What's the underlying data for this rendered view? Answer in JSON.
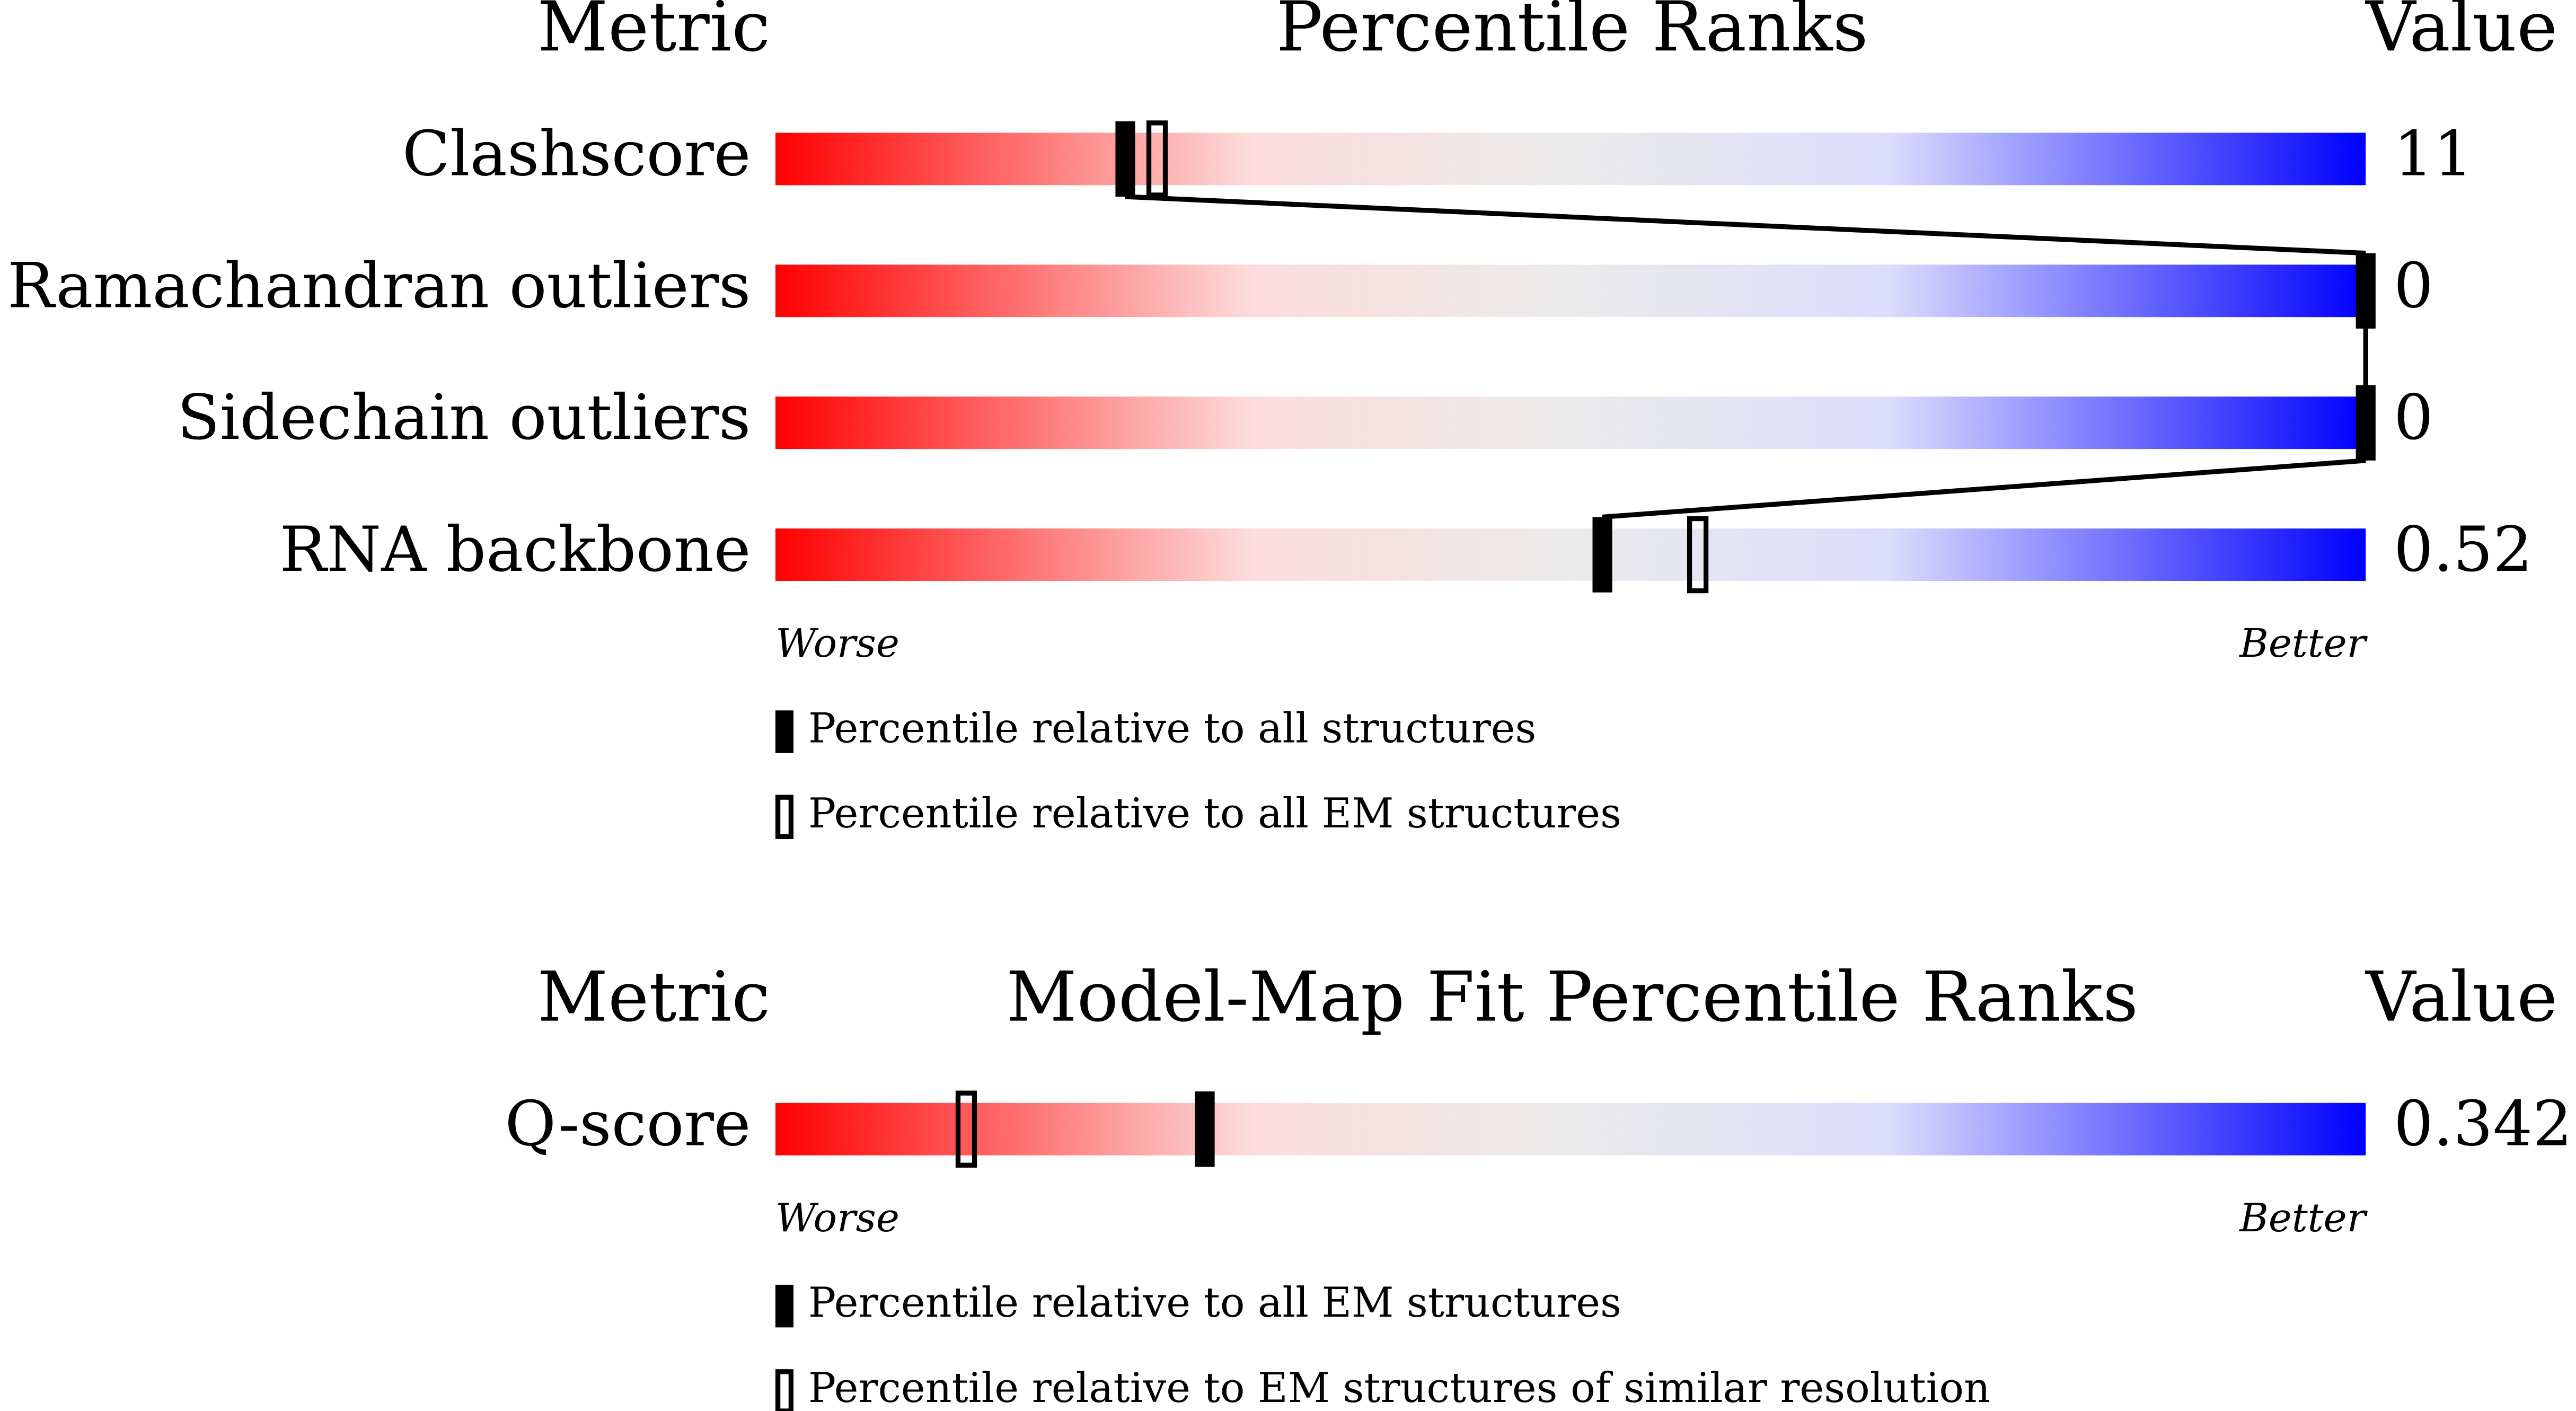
{
  "panels": [
    {
      "header": {
        "metric": "Metric",
        "title": "Percentile Ranks",
        "value": "Value"
      },
      "range": [
        0,
        100
      ],
      "rows": [
        {
          "metric": "Clashscore",
          "value": 11,
          "percentile_filled": 22,
          "percentile_open": 24
        },
        {
          "metric": "Ramachandran outliers",
          "value": 0,
          "percentile_filled": 100
        },
        {
          "metric": "Sidechain outliers",
          "value": 0,
          "percentile_filled": 100
        },
        {
          "metric": "RNA backbone",
          "value": 0.52,
          "percentile_filled": 52,
          "percentile_open": 58
        }
      ],
      "scale": {
        "worse": "Worse",
        "better": "Better"
      },
      "legend": {
        "filled": "Percentile relative to all structures",
        "open": "Percentile relative to all EM structures"
      }
    },
    {
      "header": {
        "metric": "Metric",
        "title": "Model-Map Fit Percentile Ranks",
        "value": "Value"
      },
      "range": [
        0,
        100
      ],
      "rows": [
        {
          "metric": "Q-score",
          "value": 0.342,
          "percentile_filled": 27,
          "percentile_open": 12
        }
      ],
      "scale": {
        "worse": "Worse",
        "better": "Better"
      },
      "legend": {
        "filled": "Percentile relative to all EM structures",
        "open": "Percentile relative to EM structures of similar resolution"
      }
    }
  ]
}
